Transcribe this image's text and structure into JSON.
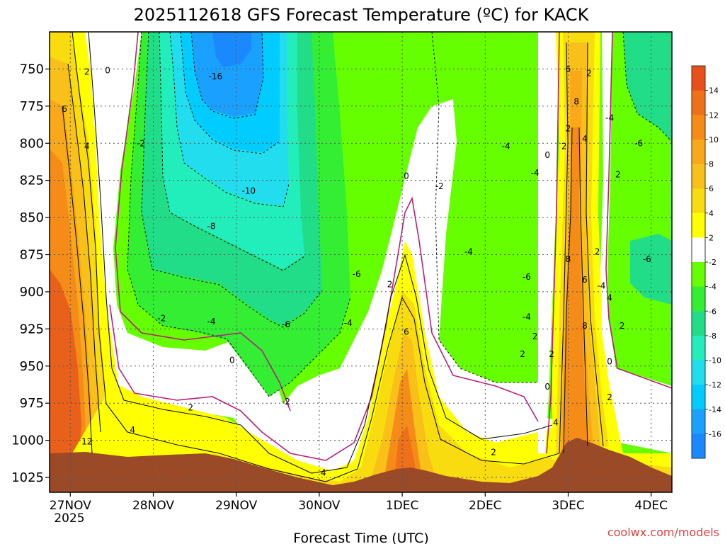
{
  "chart_data": {
    "type": "contour",
    "title": "2025112618 GFS Forecast Temperature (ºC) for KACK",
    "xlabel": "Forecast Time (UTC)",
    "ylabel": "",
    "credit": "coolwx.com/models",
    "y_axis": {
      "range": [
        1035,
        725
      ],
      "ticks": [
        750,
        775,
        800,
        825,
        850,
        875,
        900,
        925,
        950,
        975,
        1000,
        1025
      ],
      "tick_labels": [
        "750",
        "775",
        "800",
        "825",
        "850",
        "875",
        "900",
        "925",
        "950",
        "975",
        "1000",
        "1025"
      ]
    },
    "x_axis": {
      "range_days": [
        -0.25,
        7.25
      ],
      "ticks_days": [
        0,
        1,
        2,
        3,
        4,
        5,
        6,
        7
      ],
      "tick_labels": [
        "27NOV",
        "28NOV",
        "29NOV",
        "30NOV",
        "1DEC",
        "2DEC",
        "3DEC",
        "4DEC"
      ],
      "year_label": "2025"
    },
    "colorbar": {
      "labels": [
        "14",
        "12",
        "10",
        "8",
        "6",
        "4",
        "2",
        "-2",
        "-4",
        "-6",
        "-8",
        "-10",
        "-12",
        "-14",
        "-16"
      ],
      "colors": [
        "#e8501a",
        "#f0701a",
        "#f58c18",
        "#f8a818",
        "#f8c018",
        "#f8dc10",
        "#ffff00",
        "#ffffff",
        "#66ff00",
        "#33ee33",
        "#22dd88",
        "#22eebb",
        "#22ddee",
        "#00ccff",
        "#1aa0ff",
        "#1a88ff"
      ]
    },
    "contour_labels": [
      {
        "text": "-16",
        "day": 1.75,
        "p": 755
      },
      {
        "text": "-10",
        "day": 2.15,
        "p": 832
      },
      {
        "text": "-8",
        "day": 1.7,
        "p": 856
      },
      {
        "text": "-6",
        "day": 2.6,
        "p": 922
      },
      {
        "text": "-6",
        "day": 3.45,
        "p": 888
      },
      {
        "text": "-4",
        "day": 1.7,
        "p": 920
      },
      {
        "text": "-4",
        "day": 3.35,
        "p": 921
      },
      {
        "text": "-2",
        "day": 0.85,
        "p": 800
      },
      {
        "text": "-2",
        "day": 1.1,
        "p": 918
      },
      {
        "text": "-2",
        "day": 2.6,
        "p": 974
      },
      {
        "text": "-2",
        "day": 4.45,
        "p": 829
      },
      {
        "text": "-4",
        "day": 5.25,
        "p": 802
      },
      {
        "text": "-4",
        "day": 5.6,
        "p": 820
      },
      {
        "text": "-4",
        "day": 4.8,
        "p": 873
      },
      {
        "text": "-6",
        "day": 5.5,
        "p": 890
      },
      {
        "text": "-4",
        "day": 5.5,
        "p": 917
      },
      {
        "text": "-4",
        "day": 6.5,
        "p": 783
      },
      {
        "text": "-6",
        "day": 6.85,
        "p": 800
      },
      {
        "text": "-6",
        "day": 6.95,
        "p": 878
      },
      {
        "text": "-4",
        "day": 6.4,
        "p": 896
      },
      {
        "text": "2",
        "day": 0.2,
        "p": 752
      },
      {
        "text": "0",
        "day": 0.45,
        "p": 751
      },
      {
        "text": "6",
        "day": -0.07,
        "p": 777
      },
      {
        "text": "4",
        "day": 0.2,
        "p": 802
      },
      {
        "text": "12",
        "day": 0.2,
        "p": 1001
      },
      {
        "text": "4",
        "day": 0.75,
        "p": 993
      },
      {
        "text": "2",
        "day": 1.45,
        "p": 978
      },
      {
        "text": "0",
        "day": 1.95,
        "p": 946
      },
      {
        "text": "4",
        "day": 3.05,
        "p": 1022
      },
      {
        "text": "2",
        "day": 3.85,
        "p": 895
      },
      {
        "text": "6",
        "day": 4.05,
        "p": 927
      },
      {
        "text": "0",
        "day": 4.05,
        "p": 822
      },
      {
        "text": "2",
        "day": 5.1,
        "p": 1008
      },
      {
        "text": "2",
        "day": 5.95,
        "p": 802
      },
      {
        "text": "0",
        "day": 5.75,
        "p": 808
      },
      {
        "text": "2",
        "day": 5.6,
        "p": 930
      },
      {
        "text": "2",
        "day": 5.45,
        "p": 942
      },
      {
        "text": "0",
        "day": 5.75,
        "p": 964
      },
      {
        "text": "2",
        "day": 6.0,
        "p": 790
      },
      {
        "text": "6",
        "day": 6.0,
        "p": 750
      },
      {
        "text": "2",
        "day": 6.25,
        "p": 753
      },
      {
        "text": "8",
        "day": 6.1,
        "p": 772
      },
      {
        "text": "4",
        "day": 6.2,
        "p": 797
      },
      {
        "text": "8",
        "day": 6.0,
        "p": 878
      },
      {
        "text": "6",
        "day": 6.2,
        "p": 892
      },
      {
        "text": "2",
        "day": 6.35,
        "p": 873
      },
      {
        "text": "8",
        "day": 6.2,
        "p": 923
      },
      {
        "text": "4",
        "day": 6.5,
        "p": 904
      },
      {
        "text": "2",
        "day": 6.65,
        "p": 923
      },
      {
        "text": "2",
        "day": 6.6,
        "p": 821
      },
      {
        "text": "0",
        "day": 6.5,
        "p": 947
      },
      {
        "text": "2",
        "day": 6.5,
        "p": 971
      },
      {
        "text": "2",
        "day": 5.8,
        "p": 942
      },
      {
        "text": "4",
        "day": 5.85,
        "p": 988
      }
    ]
  }
}
